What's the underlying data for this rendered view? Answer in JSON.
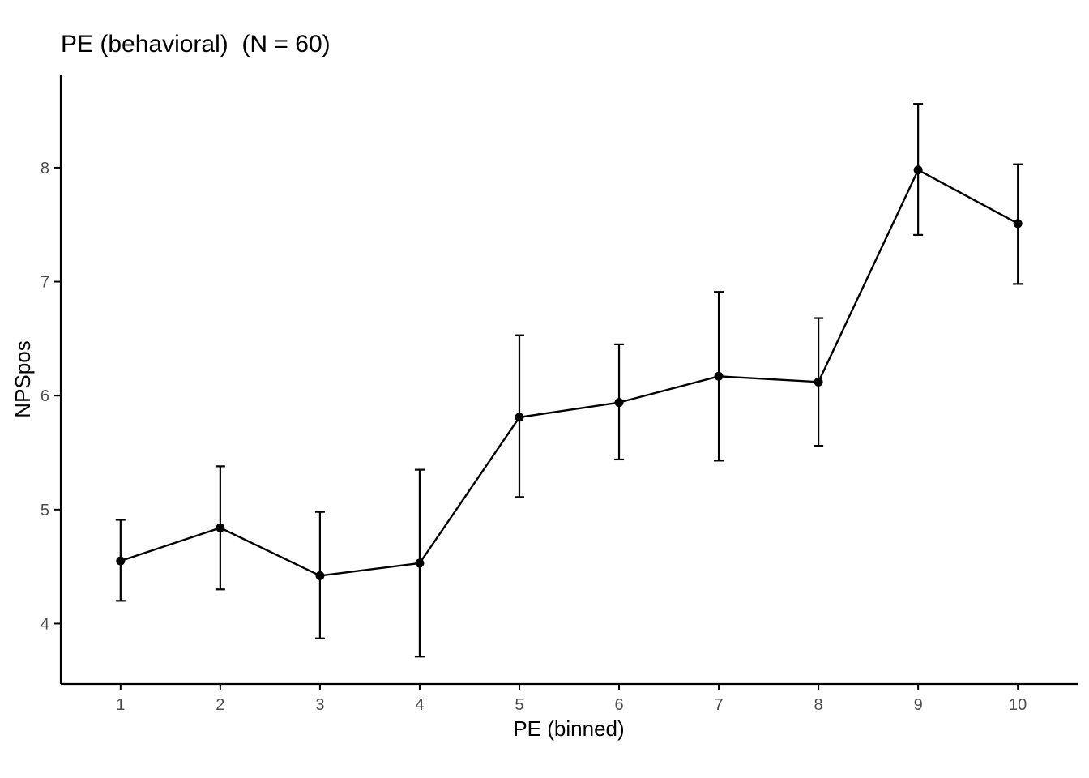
{
  "chart_data": {
    "type": "line",
    "title": "PE (behavioral)  (N = 60)",
    "xlabel": "PE (binned)",
    "ylabel": "NPSpos",
    "x": [
      1,
      2,
      3,
      4,
      5,
      6,
      7,
      8,
      9,
      10
    ],
    "x_tick_labels": [
      "1",
      "2",
      "3",
      "4",
      "5",
      "6",
      "7",
      "8",
      "9",
      "10"
    ],
    "y_ticks": [
      4,
      5,
      6,
      7,
      8
    ],
    "y_tick_labels": [
      "4",
      "5",
      "6",
      "7",
      "8"
    ],
    "xlim": [
      0.4,
      10.6
    ],
    "ylim": [
      3.47,
      8.81
    ],
    "grid": false,
    "legend": "none",
    "series": [
      {
        "values": [
          4.55,
          4.84,
          4.42,
          4.53,
          5.81,
          5.94,
          6.17,
          6.12,
          7.98,
          7.51
        ],
        "error_lower": [
          4.2,
          4.3,
          3.87,
          3.71,
          5.11,
          5.44,
          5.43,
          5.56,
          7.41,
          6.98
        ],
        "error_upper": [
          4.91,
          5.38,
          4.98,
          5.35,
          6.53,
          6.45,
          6.91,
          6.68,
          8.56,
          8.03
        ]
      }
    ],
    "colors": {
      "line": "#000000",
      "axis": "#000000",
      "tick_label": "#4d4d4d"
    }
  }
}
